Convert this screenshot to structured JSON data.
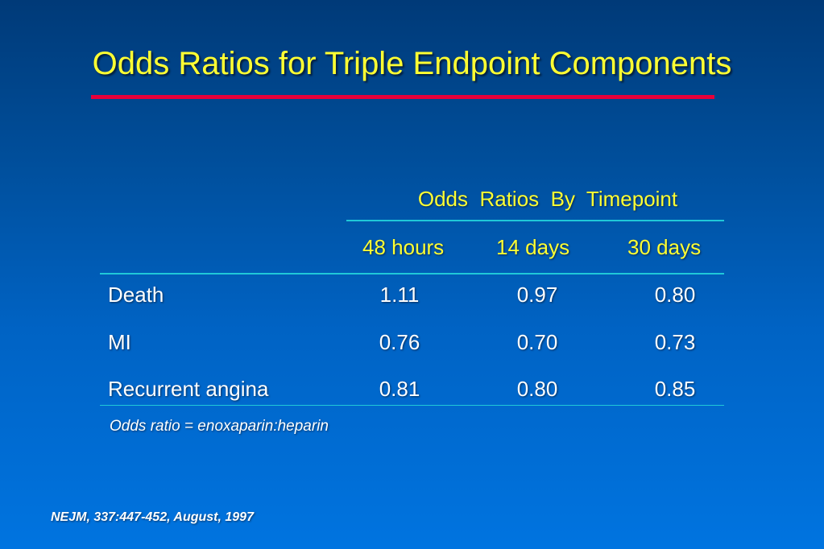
{
  "title": "Odds Ratios for Triple Endpoint Components",
  "colors": {
    "title": "#ffff33",
    "title_rule": "#e8003a",
    "table_rule": "#20c8d8",
    "text": "#ffffff"
  },
  "table": {
    "group_header": "Odds  Ratios  By  Timepoint",
    "columns": [
      "48 hours",
      "14 days",
      "30 days"
    ],
    "rows": [
      {
        "label": "Death",
        "values": [
          "1.11",
          "0.97",
          "0.80"
        ]
      },
      {
        "label": "MI",
        "values": [
          "0.76",
          "0.70",
          "0.73"
        ]
      },
      {
        "label": "Recurrent angina",
        "values": [
          "0.81",
          "0.80",
          "0.85"
        ]
      }
    ]
  },
  "footnote": "Odds ratio = enoxaparin:heparin",
  "citation": "NEJM, 337:447-452, August, 1997"
}
